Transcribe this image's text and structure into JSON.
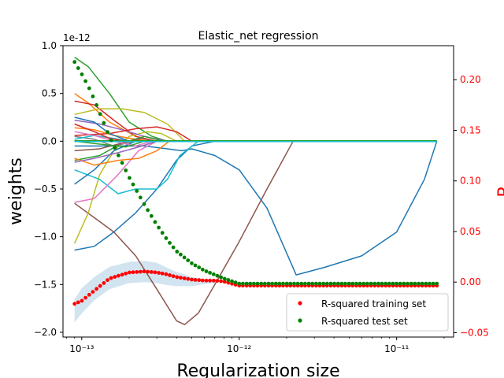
{
  "chart_data": {
    "type": "line",
    "title": "Elastic_net regression",
    "xlabel": "Regularization size",
    "ylabel": "weights",
    "ylabel_right": "R",
    "x_scale": "log",
    "xlim": [
      7.6e-14,
      2.3e-11
    ],
    "x_tick_labels": [
      "10⁻¹³",
      "10⁻¹²",
      "10⁻¹¹"
    ],
    "y_offset_label": "1e-12",
    "ylim": [
      -2.05,
      1.0
    ],
    "y_ticks": [
      1.0,
      0.5,
      0.0,
      -0.5,
      -1.0,
      -1.5,
      -2.0
    ],
    "y_tick_labels": [
      "1.0",
      "0.5",
      "0.0",
      "−0.5",
      "−1.0",
      "−1.5",
      "−2.0"
    ],
    "y2lim": [
      -0.0543,
      0.2336
    ],
    "y2_ticks": [
      0.2,
      0.15,
      0.1,
      0.05,
      0.0,
      -0.05
    ],
    "y2_tick_labels": [
      "0.20",
      "0.15",
      "0.10",
      "0.05",
      "0.00",
      "−0.05"
    ],
    "legend_position": "lower-right",
    "weight_series": [
      {
        "color": "#1f77b4",
        "x": [
          9e-14,
          1.2e-13,
          1.6e-13,
          2.2e-13,
          3e-13,
          4e-13,
          5e-13,
          7e-13,
          1e-12,
          1.5e-12,
          2.3e-12,
          3e-12,
          5e-12,
          8e-12,
          1.2e-11,
          1.8e-11
        ],
        "values": [
          -1.14,
          -1.1,
          -0.95,
          -0.75,
          -0.5,
          -0.2,
          -0.05,
          0.0,
          0.0,
          0.0,
          0.0,
          0.0,
          0.0,
          0.0,
          0.0,
          0.0
        ]
      },
      {
        "color": "#1f77b4",
        "x": [
          9e-14,
          1.5e-13,
          2.5e-13,
          3.5e-13,
          4.3e-13,
          5e-13,
          7e-13,
          1e-12,
          1.5e-12,
          2.3e-12,
          3.5e-12,
          6e-12,
          1e-11,
          1.5e-11,
          1.8e-11
        ],
        "values": [
          -0.05,
          -0.05,
          -0.05,
          -0.08,
          -0.1,
          -0.08,
          -0.15,
          -0.3,
          -0.7,
          -1.4,
          -1.32,
          -1.2,
          -0.95,
          -0.4,
          0.0
        ]
      },
      {
        "color": "#8c564b",
        "x": [
          9e-14,
          1.2e-13,
          1.6e-13,
          2.2e-13,
          3e-13,
          4e-13,
          4.5e-13,
          5.5e-13,
          7e-13,
          1e-12,
          1.5e-12,
          2.2e-12
        ],
        "values": [
          -0.65,
          -0.8,
          -0.95,
          -1.2,
          -1.55,
          -1.88,
          -1.92,
          -1.8,
          -1.5,
          -1.05,
          -0.5,
          0.0
        ]
      },
      {
        "color": "#2ca02c",
        "x": [
          9e-14,
          1.1e-13,
          1.5e-13,
          2e-13,
          2.8e-13,
          3.5e-13,
          4.5e-13
        ],
        "values": [
          0.88,
          0.78,
          0.5,
          0.2,
          0.05,
          0.0,
          0.0
        ]
      },
      {
        "color": "#ff7f0e",
        "x": [
          9e-14,
          1.1e-13,
          1.5e-13,
          2.2e-13,
          3e-13
        ],
        "values": [
          0.5,
          0.4,
          0.2,
          0.05,
          0.0
        ]
      },
      {
        "color": "#d62728",
        "x": [
          9e-14,
          1.2e-13,
          1.6e-13,
          2.2e-13,
          3e-13
        ],
        "values": [
          0.42,
          0.38,
          0.22,
          0.05,
          0.0
        ]
      },
      {
        "color": "#bcbd22",
        "x": [
          9e-14,
          1.1e-13,
          1.3e-13,
          1.6e-13,
          2e-13,
          2.6e-13,
          3.2e-13,
          4e-13
        ],
        "values": [
          -1.07,
          -0.75,
          -0.35,
          -0.1,
          0.05,
          0.1,
          0.08,
          0.0
        ]
      },
      {
        "color": "#bcbd22",
        "x": [
          9e-14,
          1.3e-13,
          1.8e-13,
          2.5e-13,
          3.5e-13,
          4.5e-13
        ],
        "values": [
          0.28,
          0.34,
          0.34,
          0.3,
          0.18,
          0.0
        ]
      },
      {
        "color": "#17becf",
        "x": [
          9e-14,
          1.3e-13,
          1.7e-13,
          2.2e-13,
          3e-13,
          3.5e-13,
          4.2e-13,
          5.5e-13
        ],
        "values": [
          -0.3,
          -0.4,
          -0.55,
          -0.5,
          -0.5,
          -0.4,
          -0.15,
          0.0
        ]
      },
      {
        "color": "#e377c2",
        "x": [
          9e-14,
          1.2e-13,
          1.7e-13,
          2.3e-13,
          3e-13
        ],
        "values": [
          -0.64,
          -0.6,
          -0.35,
          -0.1,
          0.0
        ]
      },
      {
        "color": "#9467bd",
        "x": [
          9e-14,
          1.3e-13,
          1.8e-13,
          2.5e-13,
          3.5e-13
        ],
        "values": [
          0.22,
          0.18,
          0.12,
          0.05,
          0.0
        ]
      },
      {
        "color": "#d62728",
        "x": [
          9e-14,
          1.5e-13,
          2.2e-13,
          3e-13,
          4e-13,
          5e-13
        ],
        "values": [
          0.06,
          0.08,
          0.13,
          0.15,
          0.1,
          0.0
        ]
      },
      {
        "color": "#1f77b4",
        "x": [
          9e-14,
          1.2e-13,
          1.6e-13,
          2.2e-13,
          3e-13
        ],
        "values": [
          -0.45,
          -0.3,
          -0.1,
          0.0,
          0.0
        ]
      },
      {
        "color": "#ff7f0e",
        "x": [
          9e-14,
          1.2e-13,
          1.6e-13,
          2.2e-13,
          2.8e-13
        ],
        "values": [
          0.14,
          0.12,
          0.06,
          0.02,
          0.0
        ]
      },
      {
        "color": "#2ca02c",
        "x": [
          9e-14,
          1.3e-13,
          1.8e-13,
          2.5e-13,
          3.3e-13
        ],
        "values": [
          -0.2,
          -0.15,
          -0.02,
          0.05,
          0.0
        ]
      },
      {
        "color": "#7f7f7f",
        "x": [
          9e-14,
          1.2e-13,
          1.6e-13,
          2.2e-13
        ],
        "values": [
          0.05,
          0.02,
          -0.05,
          0.0
        ]
      },
      {
        "color": "#8c564b",
        "x": [
          9e-14,
          1.3e-13,
          1.8e-13,
          2.4e-13,
          3e-13
        ],
        "values": [
          -0.1,
          -0.08,
          -0.02,
          0.03,
          0.0
        ]
      },
      {
        "color": "#17becf",
        "x": [
          9e-14,
          1.2e-13,
          1.6e-13,
          2e-13
        ],
        "values": [
          0.02,
          0.06,
          0.03,
          0.0
        ]
      },
      {
        "color": "#ff7f0e",
        "x": [
          9e-14,
          1.2e-13,
          1.7e-13,
          2.3e-13,
          3e-13,
          3.6e-13
        ],
        "values": [
          -0.18,
          -0.25,
          -0.2,
          -0.18,
          -0.1,
          0.0
        ]
      },
      {
        "color": "#1f77b4",
        "x": [
          9e-14,
          1.2e-13,
          1.5e-13,
          2e-13
        ],
        "values": [
          0.25,
          0.2,
          0.08,
          0.0
        ]
      },
      {
        "color": "#e377c2",
        "x": [
          9e-14,
          1.2e-13,
          1.6e-13,
          2.2e-13,
          2.8e-13
        ],
        "values": [
          0.1,
          0.06,
          0.0,
          -0.05,
          0.0
        ]
      },
      {
        "color": "#2ca02c",
        "x": [
          9e-14,
          1.3e-13,
          1.9e-13,
          2.5e-13
        ],
        "values": [
          0.0,
          -0.03,
          -0.06,
          0.0
        ]
      },
      {
        "color": "#9467bd",
        "x": [
          9e-14,
          1.2e-13,
          1.7e-13,
          2.3e-13,
          3e-13
        ],
        "values": [
          -0.22,
          -0.18,
          -0.12,
          -0.06,
          0.0
        ]
      },
      {
        "color": "#d62728",
        "x": [
          9e-14,
          1.2e-13,
          1.5e-13,
          1.9e-13
        ],
        "values": [
          0.18,
          0.1,
          0.03,
          0.0
        ]
      },
      {
        "color": "#1f77b4",
        "x": [
          9e-14,
          1.8e-11
        ],
        "values": [
          0.0,
          0.0
        ]
      },
      {
        "color": "#2ca02c",
        "x": [
          9e-14,
          1.8e-11
        ],
        "values": [
          0.005,
          0.005
        ]
      },
      {
        "color": "#17becf",
        "x": [
          9e-14,
          1.8e-11
        ],
        "values": [
          -0.003,
          -0.003
        ]
      }
    ],
    "confidence_band": {
      "x": [
        9e-14,
        1e-13,
        1.2e-13,
        1.5e-13,
        2e-13,
        2.5e-13,
        3e-13,
        3.5e-13,
        4e-13,
        5e-13,
        6e-13,
        7e-13
      ],
      "upper": [
        -0.017,
        -0.006,
        0.005,
        0.015,
        0.02,
        0.021,
        0.019,
        0.014,
        0.01,
        0.005,
        0.003,
        0.002
      ],
      "lower": [
        -0.04,
        -0.031,
        -0.018,
        -0.007,
        -0.001,
        0.0,
        -0.001,
        -0.003,
        -0.004,
        -0.004,
        -0.002,
        -0.001
      ]
    },
    "series": [
      {
        "name": "R-squared training set",
        "color": "#ff0000",
        "count": 100,
        "x_start": 9e-14,
        "x_end": 1.8e-11,
        "x_knots": [
          9e-14,
          1e-13,
          1.2e-13,
          1.5e-13,
          2e-13,
          2.5e-13,
          3e-13,
          3.5e-13,
          4e-13,
          5e-13,
          6e-13,
          7e-13,
          8e-13,
          1e-12,
          1.8e-11
        ],
        "values": [
          -0.0215,
          -0.0185,
          -0.0085,
          0.0035,
          0.0095,
          0.0105,
          0.0095,
          0.0075,
          0.005,
          0.0025,
          0.0015,
          0.0015,
          0.0005,
          -0.0035,
          -0.0035
        ]
      },
      {
        "name": "R-squared test set",
        "color": "#008000",
        "count": 100,
        "x_start": 9e-14,
        "x_end": 1.8e-11,
        "x_knots": [
          9e-14,
          1e-13,
          1.1e-13,
          1.2e-13,
          1.5e-13,
          2e-13,
          2.5e-13,
          3e-13,
          3.5e-13,
          4e-13,
          5e-13,
          6e-13,
          8e-13,
          1e-12,
          1.2e-12,
          1.8e-11
        ],
        "values": [
          0.2175,
          0.2055,
          0.1935,
          0.1805,
          0.1435,
          0.1035,
          0.0765,
          0.0565,
          0.0415,
          0.0305,
          0.0185,
          0.0115,
          0.0035,
          -0.0015,
          -0.0015,
          -0.0015
        ]
      }
    ]
  }
}
